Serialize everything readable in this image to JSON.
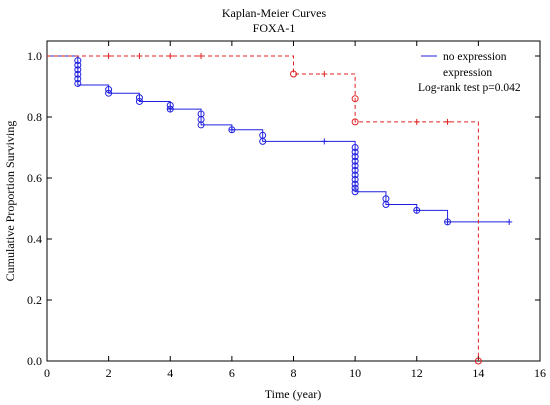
{
  "chart_data": {
    "type": "line",
    "title": "Kaplan-Meier Curves",
    "subtitle": "FOXA-1",
    "xlabel": "Time (year)",
    "ylabel": "Cumulative Proportion Surviving",
    "xlim": [
      0,
      16
    ],
    "ylim": [
      0,
      1.05
    ],
    "xticks": [
      0,
      2,
      4,
      6,
      8,
      10,
      12,
      14,
      16
    ],
    "yticks": [
      0.0,
      0.2,
      0.4,
      0.6,
      0.8,
      1.0
    ],
    "xtick_labels": [
      "0",
      "2",
      "4",
      "6",
      "8",
      "10",
      "12",
      "14",
      "16"
    ],
    "ytick_labels": [
      "0.0",
      "0.2",
      "0.4",
      "0.6",
      "0.8",
      "1.0"
    ],
    "grid": false,
    "legend_position": "top-right",
    "annotation": "Log-rank test p=0.042",
    "series": [
      {
        "name": "no expression",
        "color": "#2020e0",
        "dash": "solid",
        "steps": [
          [
            0,
            1.0
          ],
          [
            1,
            0.905
          ],
          [
            2,
            0.878
          ],
          [
            3,
            0.851
          ],
          [
            4,
            0.826
          ],
          [
            5,
            0.774
          ],
          [
            6,
            0.758
          ],
          [
            7,
            0.72
          ],
          [
            10,
            0.555
          ],
          [
            11,
            0.513
          ],
          [
            12,
            0.494
          ],
          [
            13,
            0.456
          ],
          [
            15,
            0.456
          ]
        ],
        "events": [
          [
            1,
            0.985
          ],
          [
            1,
            0.97
          ],
          [
            1,
            0.955
          ],
          [
            1,
            0.94
          ],
          [
            1,
            0.925
          ],
          [
            1,
            0.91
          ],
          [
            2,
            0.89
          ],
          [
            2,
            0.878
          ],
          [
            3,
            0.863
          ],
          [
            3,
            0.851
          ],
          [
            4,
            0.838
          ],
          [
            4,
            0.826
          ],
          [
            5,
            0.81
          ],
          [
            5,
            0.792
          ],
          [
            5,
            0.774
          ],
          [
            6,
            0.758
          ],
          [
            7,
            0.74
          ],
          [
            7,
            0.72
          ],
          [
            10,
            0.7
          ],
          [
            10,
            0.685
          ],
          [
            10,
            0.67
          ],
          [
            10,
            0.655
          ],
          [
            10,
            0.64
          ],
          [
            10,
            0.625
          ],
          [
            10,
            0.61
          ],
          [
            10,
            0.595
          ],
          [
            10,
            0.58
          ],
          [
            10,
            0.567
          ],
          [
            10,
            0.555
          ],
          [
            11,
            0.532
          ],
          [
            11,
            0.513
          ],
          [
            12,
            0.494
          ],
          [
            13,
            0.456
          ]
        ],
        "censored": [
          [
            4,
            0.826
          ],
          [
            6,
            0.758
          ],
          [
            9,
            0.72
          ],
          [
            12,
            0.494
          ],
          [
            13,
            0.456
          ],
          [
            15,
            0.456
          ]
        ]
      },
      {
        "name": "expression",
        "color": "#e02020",
        "dash": "dashed",
        "steps": [
          [
            0,
            1.0
          ],
          [
            8,
            0.941
          ],
          [
            10,
            0.784
          ],
          [
            14,
            0.0
          ]
        ],
        "events": [
          [
            8,
            0.941
          ],
          [
            10,
            0.86
          ],
          [
            10,
            0.784
          ],
          [
            14,
            0.0
          ]
        ],
        "censored": [
          [
            2,
            1.0
          ],
          [
            3,
            1.0
          ],
          [
            4,
            1.0
          ],
          [
            5,
            1.0
          ],
          [
            9,
            0.941
          ],
          [
            12,
            0.784
          ],
          [
            13,
            0.784
          ]
        ]
      }
    ]
  }
}
